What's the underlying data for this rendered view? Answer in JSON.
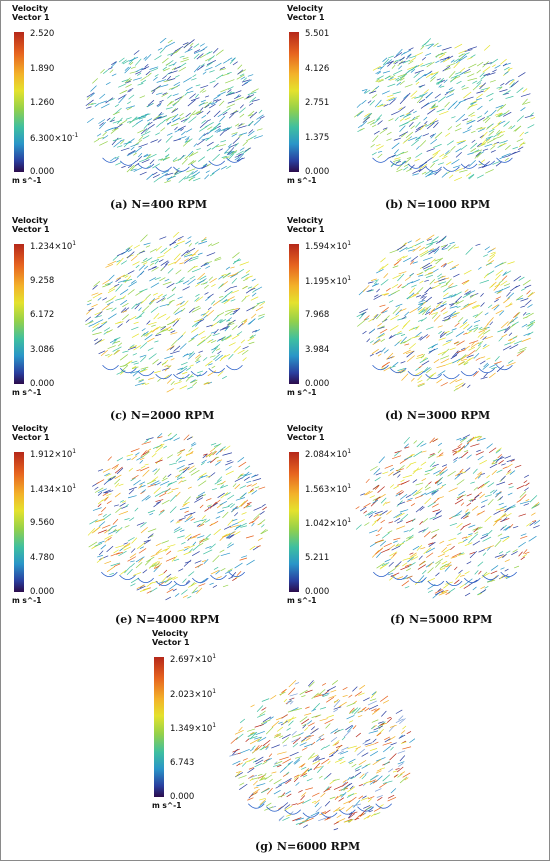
{
  "legend": {
    "title_line1": "Velocity",
    "title_line2": "Vector 1",
    "unit": "m s^-1"
  },
  "panels": [
    {
      "caption": "(a) N=400 RPM",
      "ticks": [
        "2.520",
        "1.890",
        "1.260",
        "6.300×10⁻¹",
        "0.000"
      ]
    },
    {
      "caption": "(b) N=1000 RPM",
      "ticks": [
        "5.501",
        "4.126",
        "2.751",
        "1.375",
        "0.000"
      ]
    },
    {
      "caption": "(c) N=2000 RPM",
      "ticks": [
        "1.234×10¹",
        "9.258",
        "6.172",
        "3.086",
        "0.000"
      ]
    },
    {
      "caption": "(d) N=3000 RPM",
      "ticks": [
        "1.594×10¹",
        "1.195×10¹",
        "7.968",
        "3.984",
        "0.000"
      ]
    },
    {
      "caption": "(e) N=4000 RPM",
      "ticks": [
        "1.912×10¹",
        "1.434×10¹",
        "9.560",
        "4.780",
        "0.000"
      ]
    },
    {
      "caption": "(f) N=5000 RPM",
      "ticks": [
        "2.084×10¹",
        "1.563×10¹",
        "1.042×10¹",
        "5.211",
        "0.000"
      ]
    },
    {
      "caption": "(g) N=6000 RPM",
      "ticks": [
        "2.697×10¹",
        "2.023×10¹",
        "1.349×10¹",
        "6.743",
        "0.000"
      ]
    }
  ]
}
